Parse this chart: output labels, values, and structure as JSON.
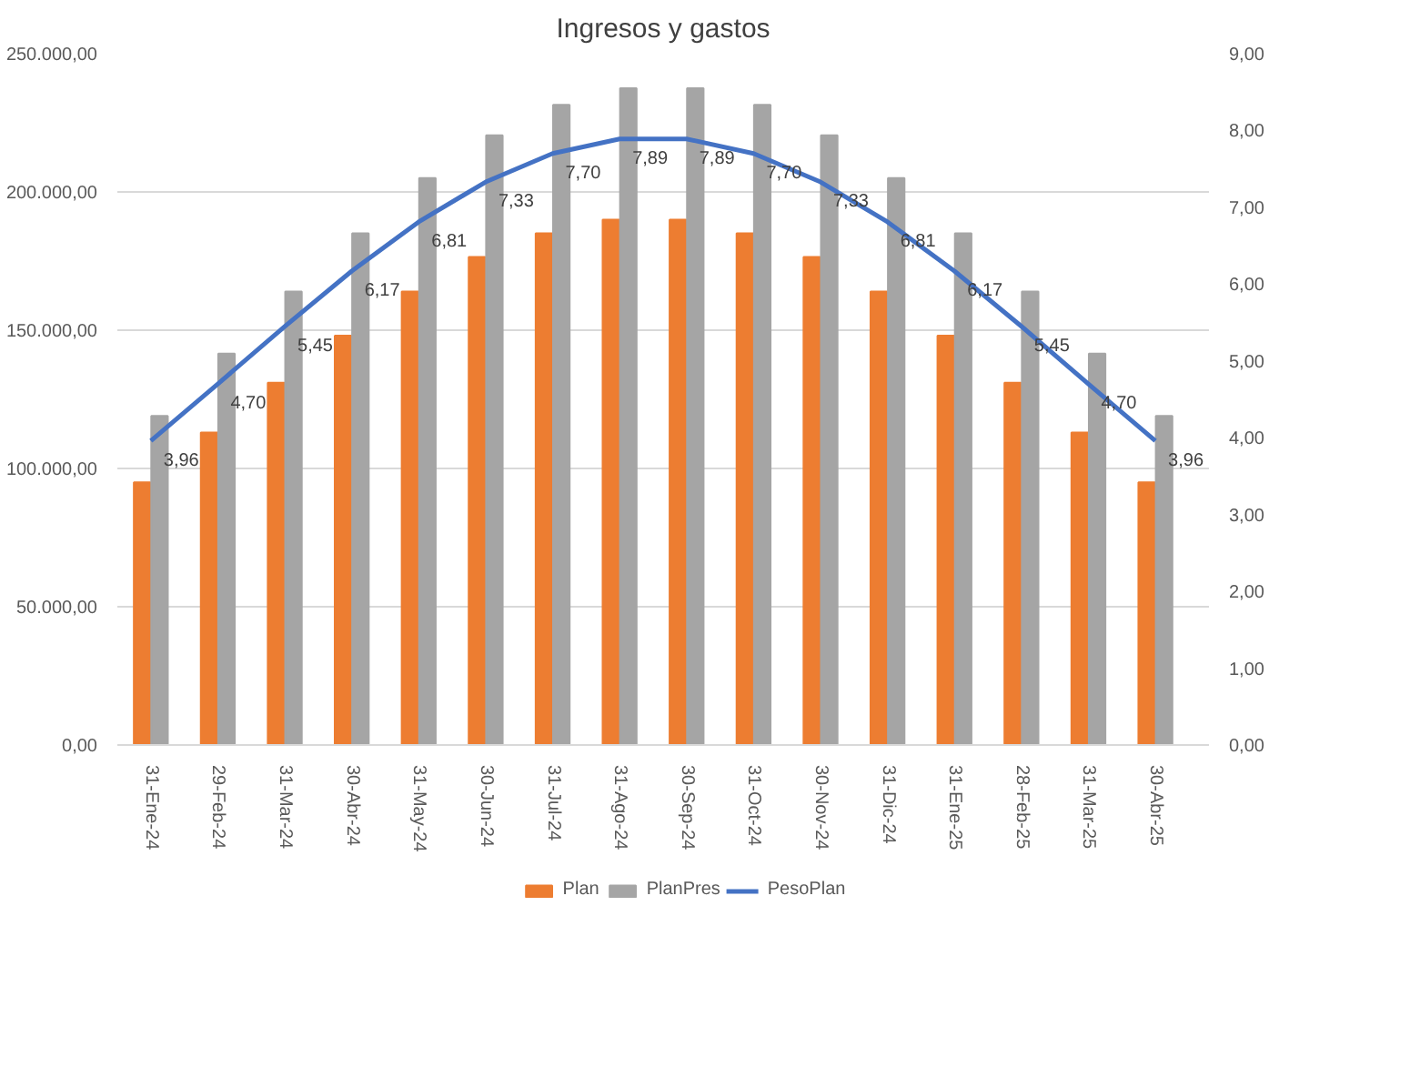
{
  "chart_data": {
    "type": "bar",
    "title": "Ingresos y gastos",
    "categories": [
      "31-Ene-24",
      "29-Feb-24",
      "31-Mar-24",
      "30-Abr-24",
      "31-May-24",
      "30-Jun-24",
      "31-Jul-24",
      "31-Ago-24",
      "30-Sep-24",
      "31-Oct-24",
      "30-Nov-24",
      "31-Dic-24",
      "31-Ene-25",
      "28-Feb-25",
      "31-Mar-25",
      "30-Abr-25"
    ],
    "series": [
      {
        "name": "Plan",
        "color": "#ed7d31",
        "values": [
          95000,
          113000,
          131000,
          148000,
          164000,
          176500,
          185000,
          190000,
          190000,
          185000,
          176500,
          164000,
          148000,
          131000,
          113000,
          95000
        ]
      },
      {
        "name": "PlanPres",
        "color": "#a5a5a5",
        "values": [
          119000,
          141500,
          164000,
          185000,
          205000,
          220500,
          231500,
          237500,
          237500,
          231500,
          220500,
          205000,
          185000,
          164000,
          141500,
          119000
        ]
      },
      {
        "name": "PesoPlan",
        "type": "line",
        "axis": "y2",
        "color": "#4472c4",
        "values": [
          3.96,
          4.7,
          5.45,
          6.17,
          6.81,
          7.33,
          7.7,
          7.89,
          7.89,
          7.7,
          7.33,
          6.81,
          6.17,
          5.45,
          4.7,
          3.96
        ],
        "value_labels": [
          "3,96",
          "4,70",
          "5,45",
          "6,17",
          "6,81",
          "7,33",
          "7,70",
          "7,89",
          "7,89",
          "7,70",
          "7,33",
          "6,81",
          "6,17",
          "5,45",
          "4,70",
          "3,96"
        ]
      }
    ],
    "ylim": [
      0,
      250000
    ],
    "yticks": [
      {
        "value": 0,
        "label": "0,00"
      },
      {
        "value": 50000,
        "label": "50.000,00"
      },
      {
        "value": 100000,
        "label": "100.000,00"
      },
      {
        "value": 150000,
        "label": "150.000,00"
      },
      {
        "value": 200000,
        "label": "200.000,00"
      },
      {
        "value": 250000,
        "label": "250.000,00"
      }
    ],
    "y2lim": [
      0,
      9
    ],
    "y2ticks": [
      {
        "value": 0,
        "label": "0,00"
      },
      {
        "value": 1,
        "label": "1,00"
      },
      {
        "value": 2,
        "label": "2,00"
      },
      {
        "value": 3,
        "label": "3,00"
      },
      {
        "value": 4,
        "label": "4,00"
      },
      {
        "value": 5,
        "label": "5,00"
      },
      {
        "value": 6,
        "label": "6,00"
      },
      {
        "value": 7,
        "label": "7,00"
      },
      {
        "value": 8,
        "label": "8,00"
      },
      {
        "value": 9,
        "label": "9,00"
      }
    ],
    "grid": "y",
    "legend": "bottom",
    "marker": "none",
    "line_style": "solid"
  }
}
